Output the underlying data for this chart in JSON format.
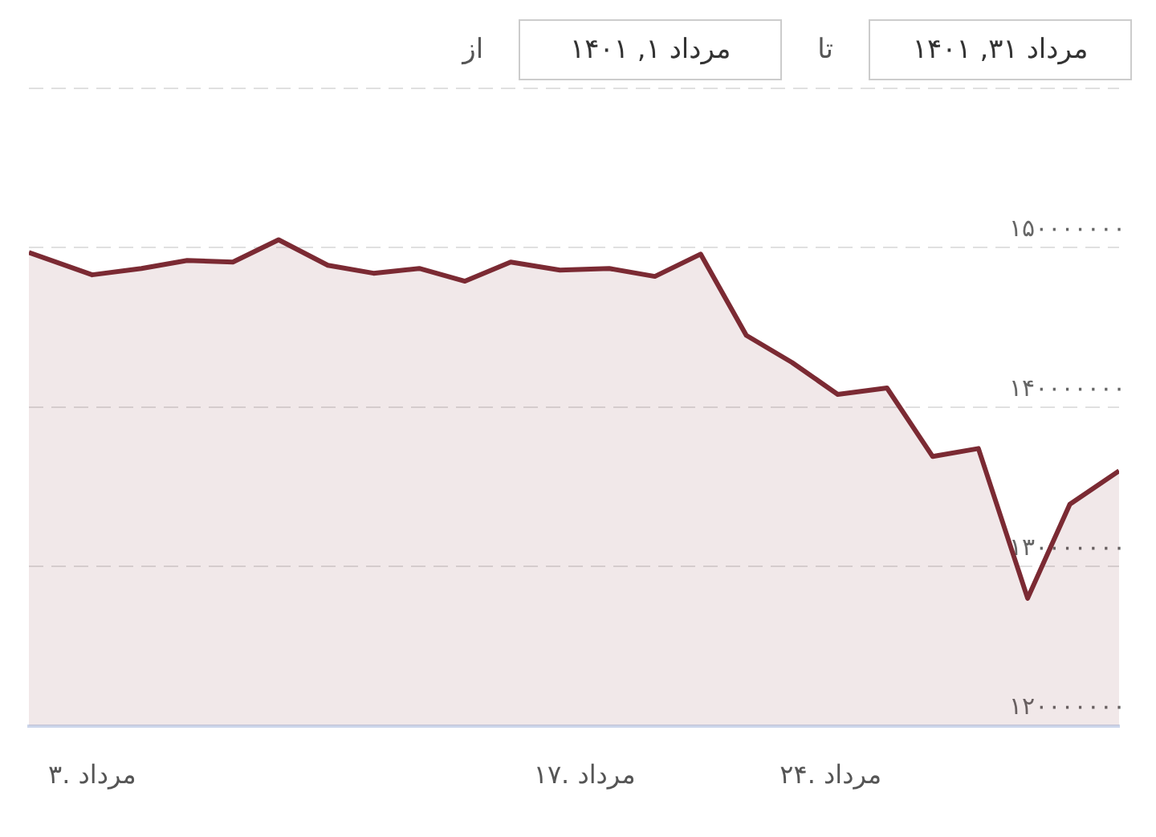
{
  "chart_data": {
    "type": "area",
    "annotations": [
      "از",
      "مرداد ۱, ۱۴۰۱",
      "تا",
      "مرداد ۳۱, ۱۴۰۱"
    ],
    "x": [
      1.2,
      3.0,
      4.4,
      5.7,
      7.0,
      8.3,
      9.7,
      11.0,
      12.3,
      13.6,
      14.9,
      16.3,
      17.7,
      19.0,
      20.3,
      21.6,
      22.9,
      24.2,
      25.6,
      26.9,
      28.2,
      29.6,
      30.8,
      32.2
    ],
    "series": [
      {
        "color": "#7b2a33",
        "values": [
          149700000,
          148300000,
          148700000,
          149200000,
          149100000,
          150500000,
          148900000,
          148400000,
          148700000,
          147900000,
          149100000,
          148600000,
          148700000,
          148200000,
          149600000,
          144500000,
          142800000,
          140800000,
          141200000,
          136900000,
          137400000,
          128000000,
          133900000,
          136000000
        ]
      }
    ],
    "xlim": [
      1.2,
      32.2
    ],
    "xticks": [
      {
        "value": 3,
        "label": "۳. مرداد"
      },
      {
        "value": 17,
        "label": "۱۷. مرداد"
      },
      {
        "value": 24,
        "label": "۲۴. مرداد"
      }
    ],
    "ylim": [
      120000000,
      160000000
    ],
    "yticks": [
      {
        "value": 120000000,
        "label": "۱۲۰۰۰۰۰۰۰"
      },
      {
        "value": 130000000,
        "label": "۱۳۰۰۰۰۰۰۰"
      },
      {
        "value": 140000000,
        "label": "۱۴۰۰۰۰۰۰۰"
      },
      {
        "value": 150000000,
        "label": "۱۵۰۰۰۰۰۰۰"
      },
      {
        "value": 160000000,
        "label": null
      }
    ],
    "grid": "y",
    "legend": false,
    "marker": "none",
    "line_style": "solid"
  }
}
